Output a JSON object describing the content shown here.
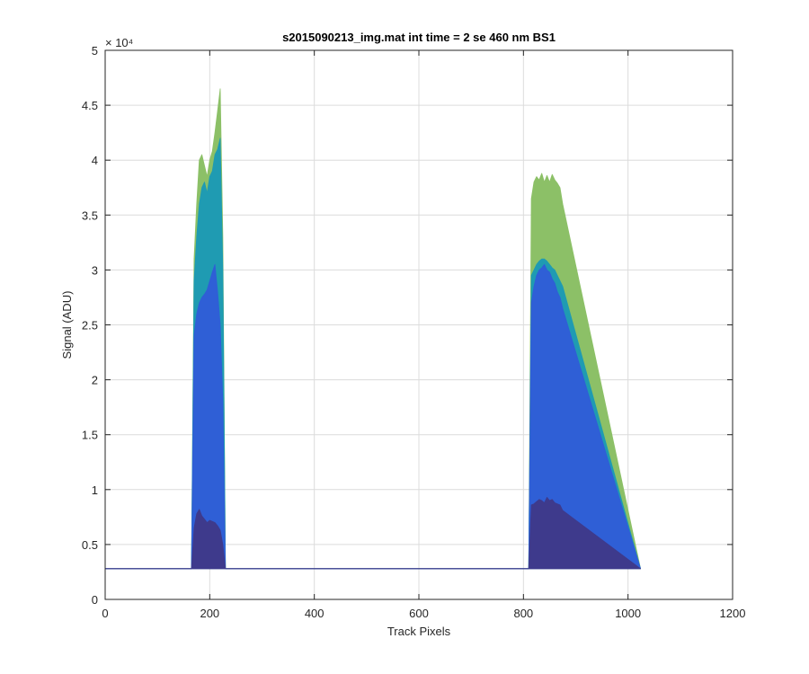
{
  "chart_data": {
    "type": "area",
    "title": "s2015090213_img.mat int time = 2 se  460 nm BS1",
    "xlabel": "Track Pixels",
    "ylabel": "Signal (ADU)",
    "xlim": [
      0,
      1200
    ],
    "ylim": [
      0,
      50000
    ],
    "x_ticks": [
      0,
      200,
      400,
      600,
      800,
      1000,
      1200
    ],
    "x_tick_labels": [
      "0",
      "200",
      "400",
      "600",
      "800",
      "1000",
      "1200"
    ],
    "y_ticks": [
      0,
      5000,
      10000,
      15000,
      20000,
      25000,
      30000,
      35000,
      40000,
      45000,
      50000
    ],
    "y_tick_labels": [
      "0",
      "0.5",
      "1",
      "1.5",
      "2",
      "2.5",
      "3",
      "3.5",
      "4",
      "4.5",
      "5"
    ],
    "y_exponent_label": "× 10⁴",
    "grid": true,
    "baseline": 2800,
    "x_range": [
      0,
      1024
    ],
    "series": [
      {
        "color": "#3e3a8c",
        "x": [
          0,
          165,
          170,
          175,
          180,
          185,
          190,
          195,
          200,
          205,
          210,
          215,
          220,
          225,
          230,
          810,
          815,
          820,
          825,
          830,
          835,
          840,
          845,
          850,
          855,
          860,
          865,
          870,
          875,
          1024
        ],
        "y": [
          2800,
          2800,
          6500,
          7800,
          8200,
          7600,
          7300,
          7000,
          7200,
          7100,
          7000,
          6700,
          6300,
          5000,
          2800,
          2800,
          8600,
          8700,
          8900,
          9100,
          9000,
          8800,
          9300,
          9000,
          9100,
          8800,
          8700,
          8600,
          8100,
          2800
        ]
      },
      {
        "color": "#2f5fd6",
        "x": [
          0,
          165,
          170,
          175,
          180,
          185,
          190,
          195,
          200,
          205,
          210,
          215,
          220,
          225,
          230,
          810,
          815,
          820,
          825,
          830,
          835,
          840,
          845,
          850,
          855,
          860,
          865,
          870,
          875,
          1024
        ],
        "y": [
          2800,
          2800,
          24000,
          26000,
          27000,
          27500,
          27800,
          28200,
          29000,
          29800,
          30500,
          28000,
          25000,
          18000,
          2800,
          2800,
          27000,
          28500,
          29500,
          30000,
          30200,
          30500,
          30000,
          29800,
          29200,
          28800,
          28000,
          27500,
          26500,
          2800
        ]
      },
      {
        "color": "#1f9bb2",
        "x": [
          0,
          165,
          170,
          175,
          180,
          185,
          190,
          195,
          200,
          205,
          210,
          215,
          220,
          225,
          230,
          810,
          815,
          820,
          825,
          830,
          835,
          840,
          845,
          850,
          855,
          860,
          865,
          870,
          875,
          1024
        ],
        "y": [
          2800,
          2800,
          29000,
          33000,
          36000,
          37500,
          38000,
          37000,
          38500,
          39000,
          40500,
          41000,
          42000,
          30000,
          2800,
          2800,
          29500,
          30000,
          30500,
          30800,
          31000,
          31000,
          30800,
          30500,
          30200,
          30000,
          29500,
          29000,
          28500,
          2800
        ]
      },
      {
        "color": "#8cc067",
        "x": [
          0,
          165,
          170,
          175,
          180,
          185,
          190,
          195,
          200,
          205,
          210,
          215,
          220,
          225,
          230,
          810,
          815,
          820,
          825,
          830,
          835,
          840,
          845,
          850,
          855,
          860,
          865,
          870,
          875,
          1024
        ],
        "y": [
          2800,
          2800,
          31000,
          36000,
          40000,
          40500,
          39500,
          38500,
          40000,
          40800,
          42500,
          44500,
          46500,
          33000,
          2800,
          2800,
          36500,
          38000,
          38500,
          38200,
          38800,
          38000,
          38600,
          38000,
          38700,
          38200,
          37900,
          37500,
          36000,
          2800
        ]
      }
    ]
  }
}
